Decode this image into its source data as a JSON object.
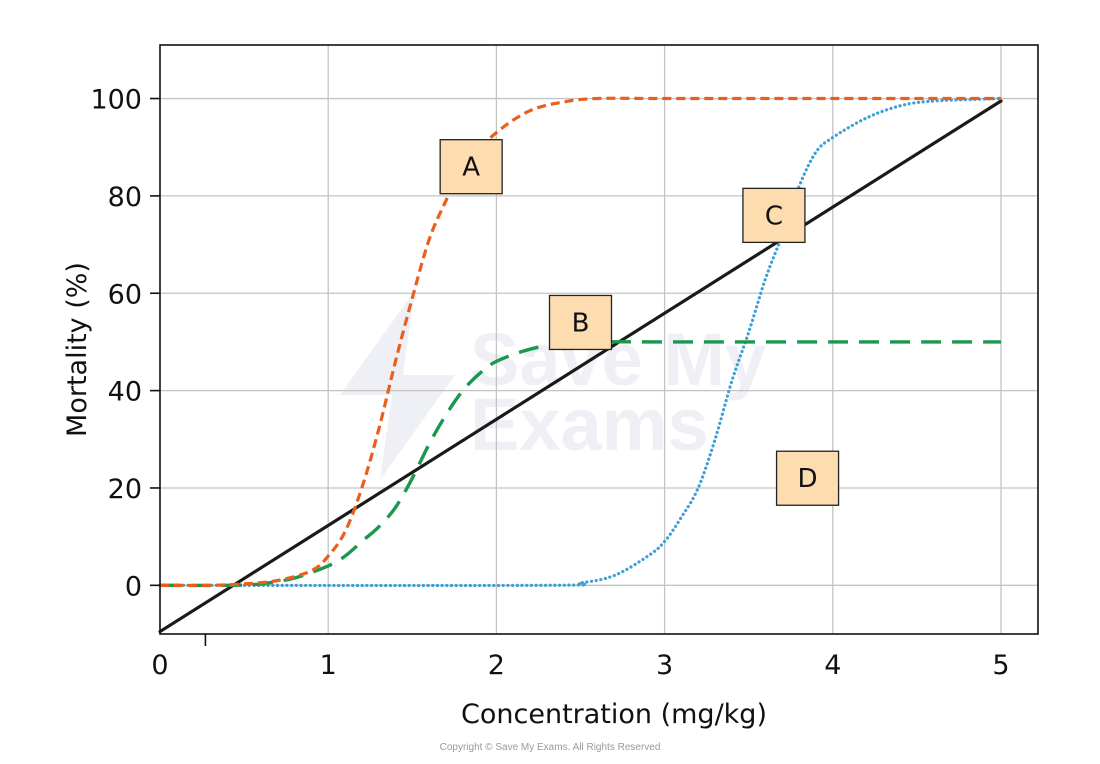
{
  "chart_data": {
    "type": "line",
    "xlabel": "Concentration (mg/kg)",
    "ylabel": "Mortality (%)",
    "xlim": [
      0,
      5.22
    ],
    "ylim": [
      -10,
      111
    ],
    "x_ticks": [
      "0",
      "1",
      "2",
      "3",
      "4",
      "5"
    ],
    "y_ticks": [
      "0",
      "20",
      "40",
      "60",
      "80",
      "100"
    ],
    "grid": true,
    "series": [
      {
        "name": "A",
        "color": "#e8601c",
        "style": "short-dash",
        "points": [
          [
            0,
            0
          ],
          [
            0.3,
            0
          ],
          [
            0.5,
            0.3
          ],
          [
            0.7,
            1
          ],
          [
            0.9,
            3
          ],
          [
            1.0,
            6
          ],
          [
            1.1,
            11
          ],
          [
            1.2,
            20
          ],
          [
            1.3,
            32
          ],
          [
            1.4,
            46
          ],
          [
            1.5,
            59
          ],
          [
            1.6,
            71
          ],
          [
            1.7,
            79
          ],
          [
            1.8,
            86
          ],
          [
            2.0,
            93
          ],
          [
            2.2,
            97.5
          ],
          [
            2.4,
            99.3
          ],
          [
            2.6,
            100
          ],
          [
            3.0,
            100
          ],
          [
            4.0,
            100
          ],
          [
            5.0,
            100
          ]
        ]
      },
      {
        "name": "B",
        "color": "#1a9850",
        "style": "long-dash",
        "points": [
          [
            0,
            0
          ],
          [
            0.4,
            0
          ],
          [
            0.6,
            0.3
          ],
          [
            0.8,
            1.5
          ],
          [
            1.0,
            4
          ],
          [
            1.1,
            6
          ],
          [
            1.2,
            9
          ],
          [
            1.3,
            12
          ],
          [
            1.4,
            16
          ],
          [
            1.5,
            22
          ],
          [
            1.6,
            29
          ],
          [
            1.7,
            35
          ],
          [
            1.8,
            40
          ],
          [
            1.9,
            43.5
          ],
          [
            2.0,
            46
          ],
          [
            2.2,
            48.5
          ],
          [
            2.4,
            49.7
          ],
          [
            2.6,
            50
          ],
          [
            3.0,
            50
          ],
          [
            4.0,
            50
          ],
          [
            5.0,
            50
          ]
        ]
      },
      {
        "name": "C",
        "color": "#1a1a1a",
        "style": "solid",
        "points": [
          [
            0,
            -9.5
          ],
          [
            5.0,
            99.5
          ]
        ]
      },
      {
        "name": "D",
        "color": "#3b9fd8",
        "style": "dotted",
        "points": [
          [
            0,
            0
          ],
          [
            2.3,
            0
          ],
          [
            2.5,
            0.5
          ],
          [
            2.7,
            2
          ],
          [
            2.9,
            6
          ],
          [
            3.0,
            9
          ],
          [
            3.1,
            14
          ],
          [
            3.2,
            20
          ],
          [
            3.3,
            30
          ],
          [
            3.4,
            42
          ],
          [
            3.5,
            52
          ],
          [
            3.6,
            63
          ],
          [
            3.7,
            72
          ],
          [
            3.8,
            82
          ],
          [
            3.9,
            89
          ],
          [
            4.0,
            92
          ],
          [
            4.2,
            96
          ],
          [
            4.4,
            98.5
          ],
          [
            4.6,
            99.5
          ],
          [
            5.0,
            100
          ]
        ]
      }
    ],
    "annotations": [
      {
        "text": "A",
        "x": 1.85,
        "y": 86
      },
      {
        "text": "B",
        "x": 2.5,
        "y": 54
      },
      {
        "text": "C",
        "x": 3.65,
        "y": 76
      },
      {
        "text": "D",
        "x": 3.85,
        "y": 22
      }
    ],
    "label_box_fill": "#fddcb0",
    "watermark": {
      "line1": "Save My",
      "line2": "Exams",
      "color": "#eef0f5"
    },
    "copyright": "Copyright © Save My Exams. All Rights Reserved"
  }
}
